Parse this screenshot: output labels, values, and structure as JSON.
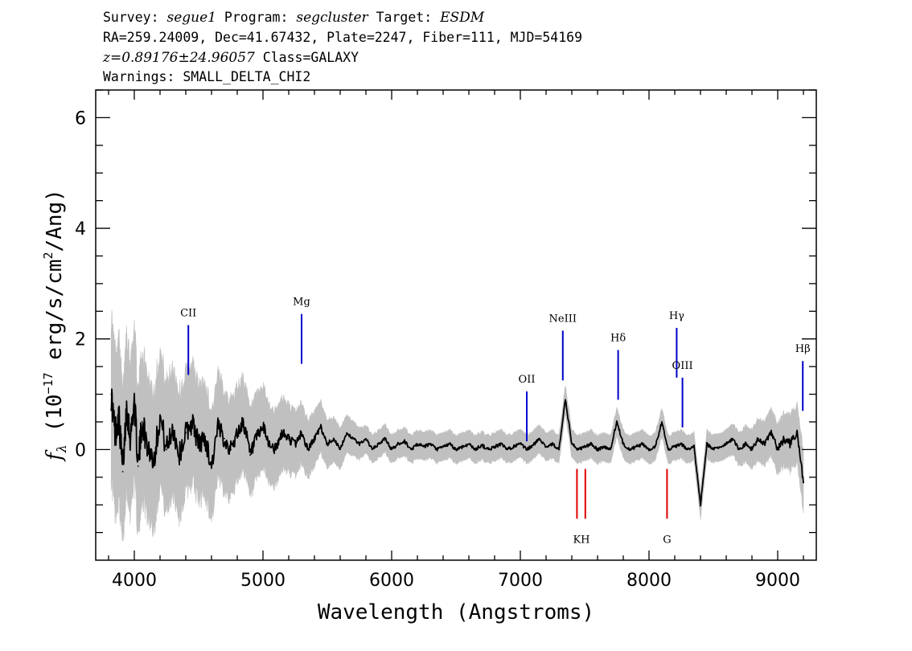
{
  "header": {
    "survey_label": "Survey:",
    "survey": "segue1",
    "program_label": "Program:",
    "program": "segcluster",
    "target_label": "Target:",
    "target": "ESDM",
    "line2": "RA=259.24009, Dec=41.67432, Plate=2247, Fiber=111, MJD=54169",
    "redshift": "z=0.89176±24.96057",
    "class_text": "Class=GALAXY",
    "warnings": "Warnings: SMALL_DELTA_CHI2"
  },
  "chart_data": {
    "type": "line",
    "xlabel": "Wavelength (Angstroms)",
    "ylabel_prefix": "f",
    "ylabel_sub": "λ",
    "ylabel_main": " (10",
    "ylabel_exp": "−17",
    "ylabel_mid": " erg/s/cm",
    "ylabel_exp2": "2",
    "ylabel_end": "/Ang)",
    "xlim": [
      3700,
      9300
    ],
    "ylim": [
      -2.0,
      6.5
    ],
    "xticks": [
      4000,
      5000,
      6000,
      7000,
      8000,
      9000
    ],
    "xtick_labels": [
      "4000",
      "5000",
      "6000",
      "7000",
      "8000",
      "9000"
    ],
    "yticks": [
      0,
      2,
      4,
      6
    ],
    "ytick_labels": [
      "0",
      "2",
      "4",
      "6"
    ],
    "grid": false,
    "colors": {
      "flux": "#000000",
      "error": "#c0c0c0",
      "emission": "#0000cc",
      "absorption": "#e00000",
      "line_label": "#000000"
    },
    "series": [
      {
        "role": "flux",
        "x": [
          3820,
          3850,
          3880,
          3910,
          3940,
          3970,
          4000,
          4030,
          4060,
          4100,
          4150,
          4200,
          4250,
          4300,
          4350,
          4400,
          4450,
          4500,
          4550,
          4600,
          4650,
          4700,
          4750,
          4800,
          4850,
          4900,
          4950,
          5000,
          5050,
          5100,
          5150,
          5200,
          5250,
          5300,
          5350,
          5400,
          5450,
          5500,
          5550,
          5600,
          5650,
          5700,
          5750,
          5800,
          5850,
          5900,
          5950,
          6000,
          6050,
          6100,
          6150,
          6200,
          6250,
          6300,
          6350,
          6400,
          6450,
          6500,
          6550,
          6600,
          6650,
          6700,
          6750,
          6800,
          6850,
          6900,
          6950,
          7000,
          7050,
          7100,
          7150,
          7200,
          7250,
          7300,
          7350,
          7400,
          7450,
          7500,
          7550,
          7600,
          7650,
          7700,
          7750,
          7800,
          7850,
          7900,
          7950,
          8000,
          8050,
          8100,
          8150,
          8200,
          8250,
          8300,
          8350,
          8400,
          8450,
          8500,
          8550,
          8600,
          8650,
          8700,
          8750,
          8800,
          8850,
          8900,
          8950,
          9000,
          9050,
          9100,
          9150,
          9200
        ],
        "y": [
          1.0,
          0.3,
          0.6,
          -0.4,
          0.8,
          0.2,
          0.9,
          -0.3,
          0.5,
          0.1,
          -0.2,
          0.6,
          0.0,
          0.4,
          -0.1,
          0.3,
          0.5,
          0.1,
          0.2,
          -0.3,
          0.4,
          0.2,
          0.0,
          0.3,
          0.5,
          -0.1,
          0.2,
          0.4,
          0.1,
          0.0,
          0.3,
          0.2,
          0.1,
          0.3,
          0.0,
          0.2,
          0.4,
          0.1,
          0.2,
          0.0,
          0.3,
          0.2,
          0.1,
          0.2,
          0.0,
          0.1,
          0.2,
          0.0,
          0.1,
          0.15,
          0.0,
          0.1,
          0.05,
          0.1,
          0.0,
          0.05,
          0.1,
          0.0,
          0.05,
          0.1,
          0.0,
          0.08,
          0.0,
          0.05,
          0.1,
          0.0,
          0.06,
          0.1,
          0.0,
          0.08,
          0.2,
          0.05,
          0.1,
          0.0,
          0.9,
          0.1,
          0.0,
          0.05,
          0.1,
          0.0,
          0.05,
          0.0,
          0.5,
          0.1,
          0.0,
          0.05,
          0.1,
          0.0,
          0.06,
          0.5,
          0.0,
          0.05,
          0.1,
          0.0,
          0.05,
          -1.0,
          0.1,
          0.0,
          0.05,
          0.1,
          0.2,
          0.0,
          0.1,
          0.0,
          0.2,
          0.1,
          0.3,
          0.0,
          0.2,
          0.1,
          0.3,
          -0.6
        ]
      }
    ],
    "spectral_lines": [
      {
        "label": "CII",
        "x": 4420,
        "type": "emission",
        "y_top": 2.25,
        "y_bottom": 1.35
      },
      {
        "label": "Mg",
        "x": 5300,
        "type": "emission",
        "y_top": 2.45,
        "y_bottom": 1.55
      },
      {
        "label": "OII",
        "x": 7050,
        "type": "emission",
        "y_top": 1.05,
        "y_bottom": 0.15
      },
      {
        "label": "NeIII",
        "x": 7330,
        "type": "emission",
        "y_top": 2.15,
        "y_bottom": 1.25
      },
      {
        "label": "Hδ",
        "x": 7760,
        "type": "emission",
        "y_top": 1.8,
        "y_bottom": 0.9
      },
      {
        "label": "Hγ",
        "x": 8215,
        "type": "emission",
        "y_top": 2.2,
        "y_bottom": 1.3
      },
      {
        "label": "OIII",
        "x": 8260,
        "type": "emission",
        "y_top": 1.3,
        "y_bottom": 0.4
      },
      {
        "label": "Hβ",
        "x": 9195,
        "type": "emission",
        "y_top": 1.6,
        "y_bottom": 0.7
      },
      {
        "label": "K",
        "x": 7440,
        "type": "absorption",
        "y_top": -0.35,
        "y_bottom": -1.25
      },
      {
        "label": "H",
        "x": 7505,
        "type": "absorption",
        "y_top": -0.35,
        "y_bottom": -1.25
      },
      {
        "label": "G",
        "x": 8140,
        "type": "absorption",
        "y_top": -0.35,
        "y_bottom": -1.25
      }
    ]
  }
}
